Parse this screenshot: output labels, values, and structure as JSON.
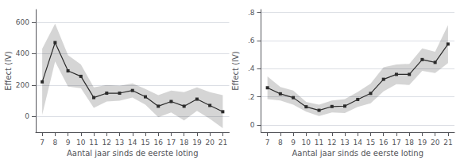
{
  "chart_data": [
    {
      "type": "line",
      "x": [
        7,
        8,
        9,
        10,
        11,
        12,
        13,
        14,
        15,
        16,
        17,
        18,
        19,
        20,
        21
      ],
      "values": [
        220,
        470,
        290,
        255,
        120,
        148,
        148,
        165,
        125,
        65,
        95,
        65,
        110,
        70,
        30
      ],
      "ci_upper": [
        430,
        590,
        390,
        330,
        185,
        200,
        195,
        210,
        175,
        135,
        165,
        155,
        185,
        155,
        135
      ],
      "ci_lower": [
        10,
        350,
        190,
        180,
        55,
        95,
        100,
        120,
        75,
        -5,
        25,
        -25,
        35,
        -15,
        -75
      ],
      "xlim": [
        6.5,
        21.5
      ],
      "xticks": [
        7,
        8,
        9,
        10,
        11,
        12,
        13,
        14,
        15,
        16,
        17,
        18,
        19,
        20,
        21
      ],
      "ylim": [
        -100,
        680
      ],
      "yticks": [
        0,
        200,
        400,
        600
      ],
      "xlabel": "Aantal jaar sinds de eerste loting",
      "ylabel": "Effect (IV)",
      "color": "#2b2b2b",
      "marker": "square",
      "grid": true
    },
    {
      "type": "line",
      "x": [
        7,
        8,
        9,
        10,
        11,
        12,
        13,
        14,
        15,
        16,
        17,
        18,
        19,
        20,
        21
      ],
      "values": [
        0.265,
        0.222,
        0.195,
        0.13,
        0.105,
        0.132,
        0.135,
        0.182,
        0.225,
        0.325,
        0.36,
        0.36,
        0.465,
        0.445,
        0.575
      ],
      "ci_upper": [
        0.345,
        0.27,
        0.245,
        0.165,
        0.145,
        0.175,
        0.185,
        0.235,
        0.295,
        0.41,
        0.43,
        0.435,
        0.545,
        0.52,
        0.71
      ],
      "ci_lower": [
        0.185,
        0.175,
        0.145,
        0.095,
        0.065,
        0.09,
        0.085,
        0.13,
        0.155,
        0.24,
        0.29,
        0.285,
        0.385,
        0.37,
        0.44
      ],
      "xlim": [
        6.5,
        21.5
      ],
      "xticks": [
        7,
        8,
        9,
        10,
        11,
        12,
        13,
        14,
        15,
        16,
        17,
        18,
        19,
        20,
        21
      ],
      "ylim": [
        -0.05,
        0.82
      ],
      "yticks": [
        0,
        {
          "value": 0.2,
          "label": ".2"
        },
        {
          "value": 0.4,
          "label": ".4"
        },
        {
          "value": 0.6,
          "label": ".6"
        },
        {
          "value": 0.8,
          "label": ".8"
        }
      ],
      "xlabel": "Aantal jaar sinds de eerste loting",
      "ylabel": "Effect (IV)",
      "color": "#2b2b2b",
      "marker": "square",
      "grid": true
    }
  ]
}
